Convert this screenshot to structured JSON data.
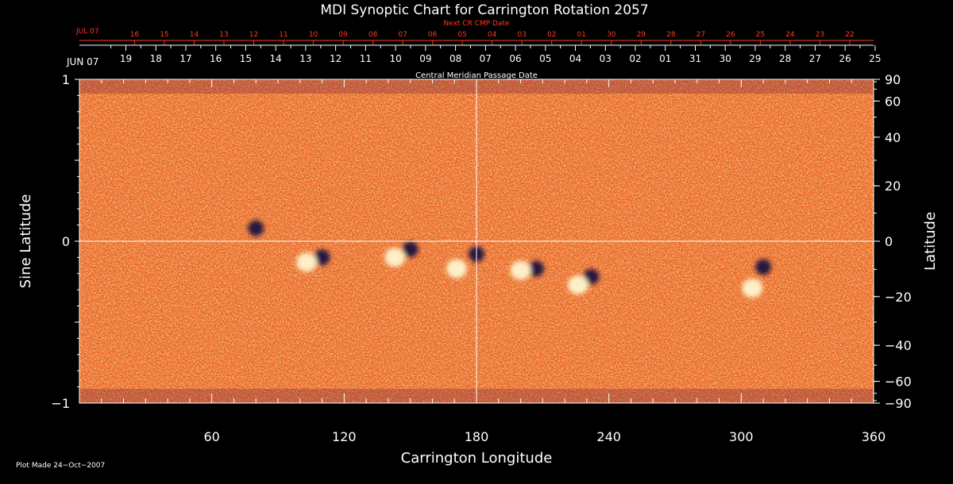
{
  "chart_data": {
    "type": "heatmap",
    "title": "MDI Synoptic Chart for Carrington Rotation 2057",
    "xlabel": "Carrington Longitude",
    "ylabel_left": "Sine Latitude",
    "ylabel_right": "Latitude",
    "xlim": [
      0,
      360
    ],
    "ylim": [
      -1,
      1
    ],
    "x_ticks": [
      "60",
      "120",
      "180",
      "240",
      "300",
      "360"
    ],
    "y_ticks_left": [
      "1",
      "0",
      "−1"
    ],
    "y_ticks_right": [
      "90",
      "60",
      "40",
      "20",
      "0",
      "−20",
      "−40",
      "−60",
      "−90"
    ],
    "top_axis_label": "Central Meridian Passage Date",
    "top_axis_month": "JUN 07",
    "top_axis_dates": [
      "19",
      "18",
      "17",
      "16",
      "15",
      "14",
      "13",
      "12",
      "11",
      "10",
      "09",
      "08",
      "07",
      "06",
      "05",
      "04",
      "03",
      "02",
      "01",
      "31",
      "30",
      "29",
      "28",
      "27",
      "26",
      "25"
    ],
    "next_cr_label": "Next CR CMP Date",
    "next_cr_month": "JUL 07",
    "next_cr_dates": [
      "16",
      "15",
      "14",
      "13",
      "12",
      "11",
      "10",
      "09",
      "08",
      "07",
      "06",
      "05",
      "04",
      "03",
      "02",
      "01",
      "30",
      "29",
      "28",
      "27",
      "26",
      "25",
      "24",
      "23",
      "22"
    ],
    "footer": "Plot Made 24−Oct−2007",
    "active_regions": [
      {
        "lon": 80,
        "sinlat": 0.08,
        "polarity": "negative"
      },
      {
        "lon": 110,
        "sinlat": -0.1,
        "polarity": "negative"
      },
      {
        "lon": 103,
        "sinlat": -0.13,
        "polarity": "positive"
      },
      {
        "lon": 150,
        "sinlat": -0.05,
        "polarity": "negative"
      },
      {
        "lon": 143,
        "sinlat": -0.1,
        "polarity": "positive"
      },
      {
        "lon": 180,
        "sinlat": -0.08,
        "polarity": "negative"
      },
      {
        "lon": 171,
        "sinlat": -0.17,
        "polarity": "positive"
      },
      {
        "lon": 207,
        "sinlat": -0.17,
        "polarity": "negative"
      },
      {
        "lon": 200,
        "sinlat": -0.18,
        "polarity": "positive"
      },
      {
        "lon": 232,
        "sinlat": -0.22,
        "polarity": "negative"
      },
      {
        "lon": 226,
        "sinlat": -0.27,
        "polarity": "positive"
      },
      {
        "lon": 310,
        "sinlat": -0.16,
        "polarity": "negative"
      },
      {
        "lon": 305,
        "sinlat": -0.29,
        "polarity": "positive"
      }
    ],
    "colors": {
      "background_field": "#ff6a14",
      "positive": "#fff8d0",
      "negative": "#1a1040",
      "mid": "#d94a10",
      "grid": "#ffffff",
      "date_axis_red": "#ff3b1e"
    }
  }
}
